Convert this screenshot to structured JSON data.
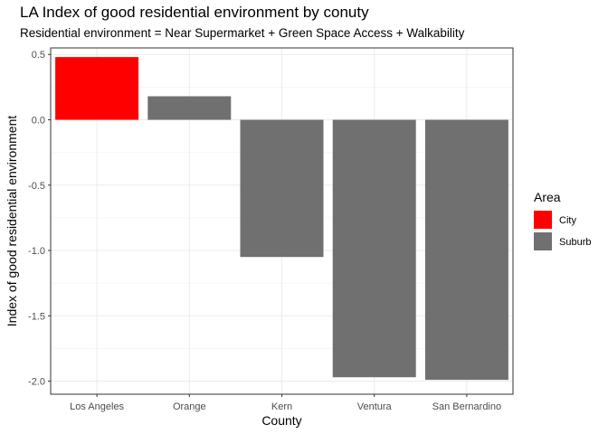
{
  "chart_data": {
    "type": "bar",
    "title": "LA Index of good residential environment by conuty",
    "subtitle": "Residential environment = Near Supermarket + Green Space Access + Walkability",
    "xlabel": "County",
    "ylabel": "Index of good residential environment",
    "categories": [
      "Los Angeles",
      "Orange",
      "Kern",
      "Ventura",
      "San Bernardino"
    ],
    "values": [
      0.48,
      0.18,
      -1.05,
      -1.97,
      -1.99
    ],
    "groups": [
      "City",
      "Suburb",
      "Suburb",
      "Suburb",
      "Suburb"
    ],
    "ylim": [
      -2.1,
      0.55
    ],
    "yticks": [
      0.5,
      0.0,
      -0.5,
      -1.0,
      -1.5,
      -2.0
    ],
    "ytick_labels": [
      "0.5",
      "0.0",
      "-0.5",
      "-1.0",
      "-1.5",
      "-2.0"
    ],
    "grid": true,
    "legend": {
      "title": "Area",
      "position": "right",
      "entries": [
        {
          "label": "City",
          "color": "#ff0000"
        },
        {
          "label": "Suburb",
          "color": "#707070"
        }
      ]
    }
  }
}
